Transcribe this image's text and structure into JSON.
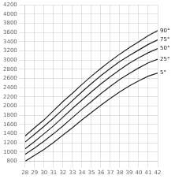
{
  "chart_data": {
    "type": "line",
    "x": [
      28,
      29,
      30,
      31,
      32,
      33,
      34,
      35,
      36,
      37,
      38,
      39,
      40,
      41,
      42
    ],
    "series": [
      {
        "name": "90°",
        "color": "#222222",
        "values": [
          1350,
          1530,
          1700,
          1900,
          2100,
          2280,
          2470,
          2650,
          2820,
          2980,
          3130,
          3270,
          3400,
          3530,
          3640
        ]
      },
      {
        "name": "75°",
        "color": "#222222",
        "values": [
          1220,
          1390,
          1560,
          1740,
          1930,
          2120,
          2310,
          2490,
          2660,
          2820,
          2970,
          3100,
          3220,
          3340,
          3440
        ]
      },
      {
        "name": "50°",
        "color": "#222222",
        "values": [
          1070,
          1230,
          1400,
          1570,
          1760,
          1950,
          2130,
          2310,
          2480,
          2640,
          2790,
          2930,
          3050,
          3160,
          3250
        ]
      },
      {
        "name": "25°",
        "color": "#222222",
        "values": [
          950,
          1090,
          1240,
          1400,
          1570,
          1750,
          1930,
          2100,
          2270,
          2430,
          2580,
          2710,
          2830,
          2940,
          3020
        ]
      },
      {
        "name": "5°",
        "color": "#222222",
        "values": [
          800,
          930,
          1060,
          1210,
          1370,
          1530,
          1700,
          1860,
          2020,
          2170,
          2310,
          2440,
          2550,
          2650,
          2720
        ]
      }
    ],
    "xlim": [
      28,
      42
    ],
    "ylim": [
      800,
      4200
    ],
    "xticks": [
      28,
      29,
      30,
      31,
      32,
      33,
      34,
      35,
      36,
      37,
      38,
      39,
      40,
      41,
      42
    ],
    "yticks": [
      800,
      1000,
      1200,
      1400,
      1600,
      1800,
      2000,
      2200,
      2400,
      2600,
      2800,
      3000,
      3200,
      3400,
      3600,
      3800,
      4000,
      4200
    ],
    "grid": true
  }
}
